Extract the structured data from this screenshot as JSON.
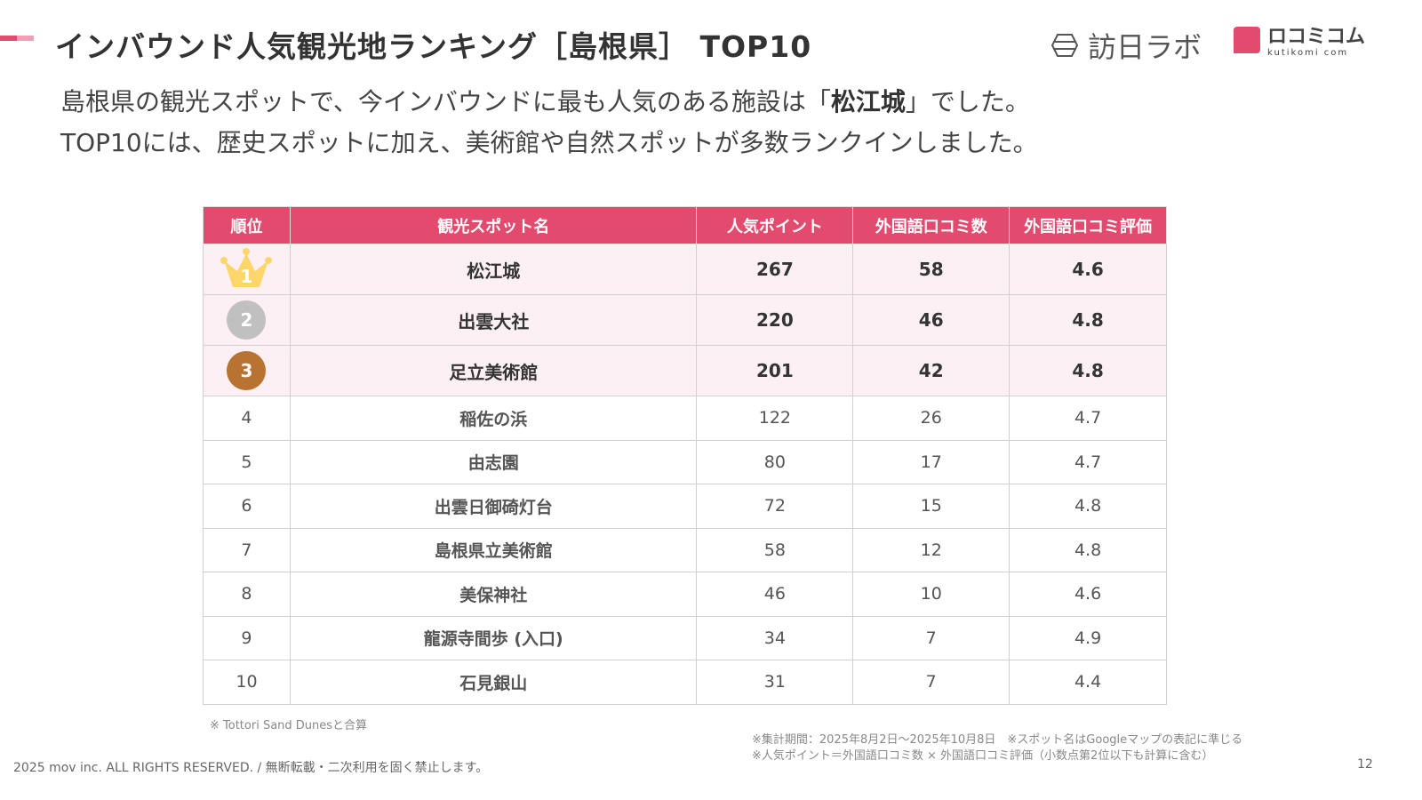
{
  "header": {
    "title": "インバウンド人気観光地ランキング［島根県］ TOP10",
    "logo1": "訪日ラボ",
    "logo2": "ロコミコム",
    "logo2_sub": "kutikomi com"
  },
  "lead": {
    "line1_pre": "島根県の観光スポットで、今インバウンドに最も人気のある施設は「",
    "line1_bold": "松江城",
    "line1_post": "」でした。",
    "line2": "TOP10には、歴史スポットに加え、美術館や自然スポットが多数ランクインしました。"
  },
  "table": {
    "headers": [
      "順位",
      "観光スポット名",
      "人気ポイント",
      "外国語口コミ数",
      "外国語口コミ評価"
    ],
    "rows": [
      {
        "rank": "1",
        "name": "松江城",
        "points": "267",
        "reviews": "58",
        "rating": "4.6"
      },
      {
        "rank": "2",
        "name": "出雲大社",
        "points": "220",
        "reviews": "46",
        "rating": "4.8"
      },
      {
        "rank": "3",
        "name": "足立美術館",
        "points": "201",
        "reviews": "42",
        "rating": "4.8"
      },
      {
        "rank": "4",
        "name": "稲佐の浜",
        "points": "122",
        "reviews": "26",
        "rating": "4.7"
      },
      {
        "rank": "5",
        "name": "由志園",
        "points": "80",
        "reviews": "17",
        "rating": "4.7"
      },
      {
        "rank": "6",
        "name": "出雲日御碕灯台",
        "points": "72",
        "reviews": "15",
        "rating": "4.8"
      },
      {
        "rank": "7",
        "name": "島根県立美術館",
        "points": "58",
        "reviews": "12",
        "rating": "4.8"
      },
      {
        "rank": "8",
        "name": "美保神社",
        "points": "46",
        "reviews": "10",
        "rating": "4.6"
      },
      {
        "rank": "9",
        "name": "龍源寺間歩 (入口)",
        "points": "34",
        "reviews": "7",
        "rating": "4.9"
      },
      {
        "rank": "10",
        "name": "石見銀山",
        "points": "31",
        "reviews": "7",
        "rating": "4.4"
      }
    ]
  },
  "colors": {
    "accent": "#e24a6e",
    "gold": "#fdd66b",
    "silver": "#c0c0c0",
    "bronze": "#b87333"
  },
  "notes": {
    "table_note": "※ Tottori Sand Dunesと合算",
    "footnote1": "※集計期間：2025年8月2日〜2025年10月8日　※スポット名はGoogleマップの表記に準じる",
    "footnote2": "※人気ポイント＝外国語口コミ数 × 外国語口コミ評価（小数点第2位以下も計算に含む）"
  },
  "footer": {
    "copyright": "2025 mov inc. ALL RIGHTS RESERVED. / 無断転載・二次利用を固く禁止します。",
    "page": "12"
  }
}
